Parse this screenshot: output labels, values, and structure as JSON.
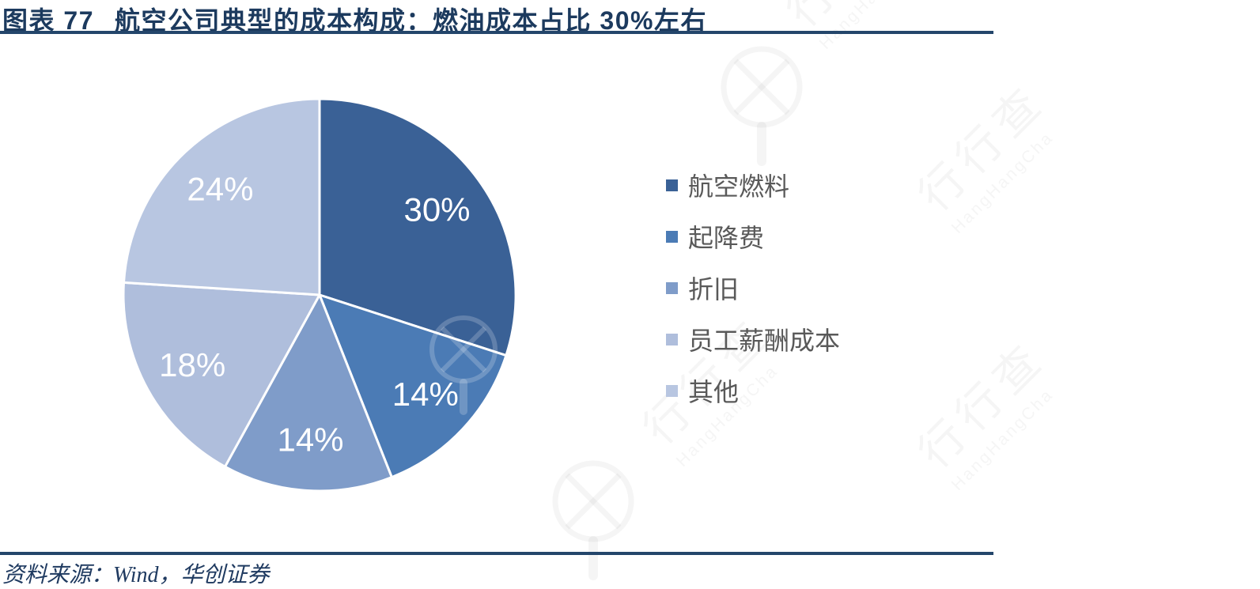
{
  "header": {
    "figure_label": "图表 77",
    "title": "航空公司典型的成本构成：燃油成本占比 30%左右"
  },
  "chart_data": {
    "type": "pie",
    "title": "航空公司典型的成本构成：燃油成本占比 30%左右",
    "start_angle_deg": 0,
    "direction": "clockwise",
    "legend_position": "right",
    "data_label_color": "#FFFFFF",
    "slices": [
      {
        "label": "航空燃料",
        "value": 30,
        "display": "30%",
        "color": "#3A6196"
      },
      {
        "label": "起降费",
        "value": 14,
        "display": "14%",
        "color": "#4B7BB5"
      },
      {
        "label": "折旧",
        "value": 14,
        "display": "14%",
        "color": "#7F9CC9"
      },
      {
        "label": "员工薪酬成本",
        "value": 18,
        "display": "18%",
        "color": "#AFBEDC"
      },
      {
        "label": "其他",
        "value": 24,
        "display": "24%",
        "color": "#B8C6E1"
      }
    ]
  },
  "footer": {
    "source": "资料来源：Wind，华创证券"
  },
  "watermark": {
    "text_cn": "行行查",
    "text_en": "HangHangCha"
  },
  "colors": {
    "accent_navy": "#1C3A5E",
    "rule_navy": "#24466B",
    "legend_text": "#595959"
  }
}
